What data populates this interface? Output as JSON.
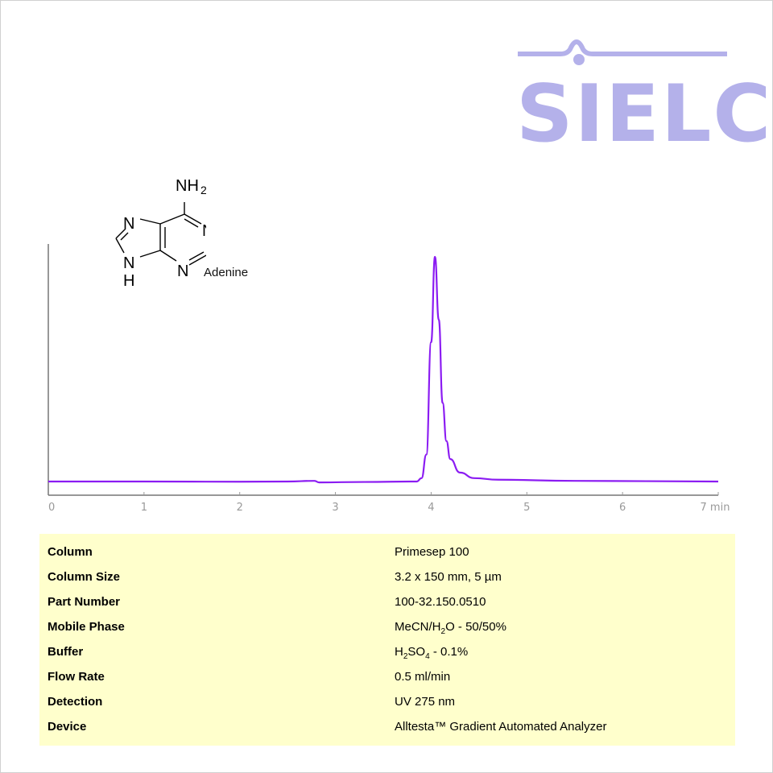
{
  "logo": {
    "text": "SIELC",
    "color": "#b4b1ea"
  },
  "compound": {
    "name": "Adenine",
    "labels": {
      "nh2": "NH",
      "nh2_sub": "2",
      "n": "N",
      "h": "H"
    }
  },
  "chart_data": {
    "type": "line",
    "xlabel": "min",
    "xlim": [
      0,
      7
    ],
    "ylim": [
      -2,
      102
    ],
    "xticks": [
      "0",
      "1",
      "2",
      "3",
      "4",
      "5",
      "6",
      "7 min"
    ],
    "grid": false,
    "series": [
      {
        "color": "#8b1cf2",
        "x": [
          0,
          1,
          2,
          2.5,
          2.78,
          2.83,
          3.3,
          3.85,
          3.9,
          3.95,
          4.0,
          4.04,
          4.08,
          4.12,
          4.16,
          4.2,
          4.3,
          4.45,
          4.7,
          5.5,
          7
        ],
        "y": [
          0,
          0,
          -0.1,
          0,
          0.3,
          -0.4,
          -0.2,
          0,
          1.5,
          12,
          62,
          100,
          72,
          35,
          18,
          10,
          4,
          1.5,
          0.8,
          0.3,
          0
        ]
      }
    ]
  },
  "table": {
    "rows": [
      {
        "key": "Column",
        "value": "Primesep 100"
      },
      {
        "key": "Column Size",
        "value": "3.2 x 150 mm, 5 µm"
      },
      {
        "key": "Part Number",
        "value": "100-32.150.0510"
      },
      {
        "key": "Mobile Phase",
        "value_parts": [
          "MeCN/H",
          "2",
          "O - 50/50%"
        ]
      },
      {
        "key": "Buffer",
        "value_parts": [
          "H",
          "2",
          "SO",
          "4",
          " - 0.1%"
        ]
      },
      {
        "key": "Flow Rate",
        "value": "0.5 ml/min"
      },
      {
        "key": "Detection",
        "value": "UV 275 nm"
      },
      {
        "key": "Device",
        "value": "Alltesta™ Gradient Automated Analyzer"
      }
    ]
  }
}
